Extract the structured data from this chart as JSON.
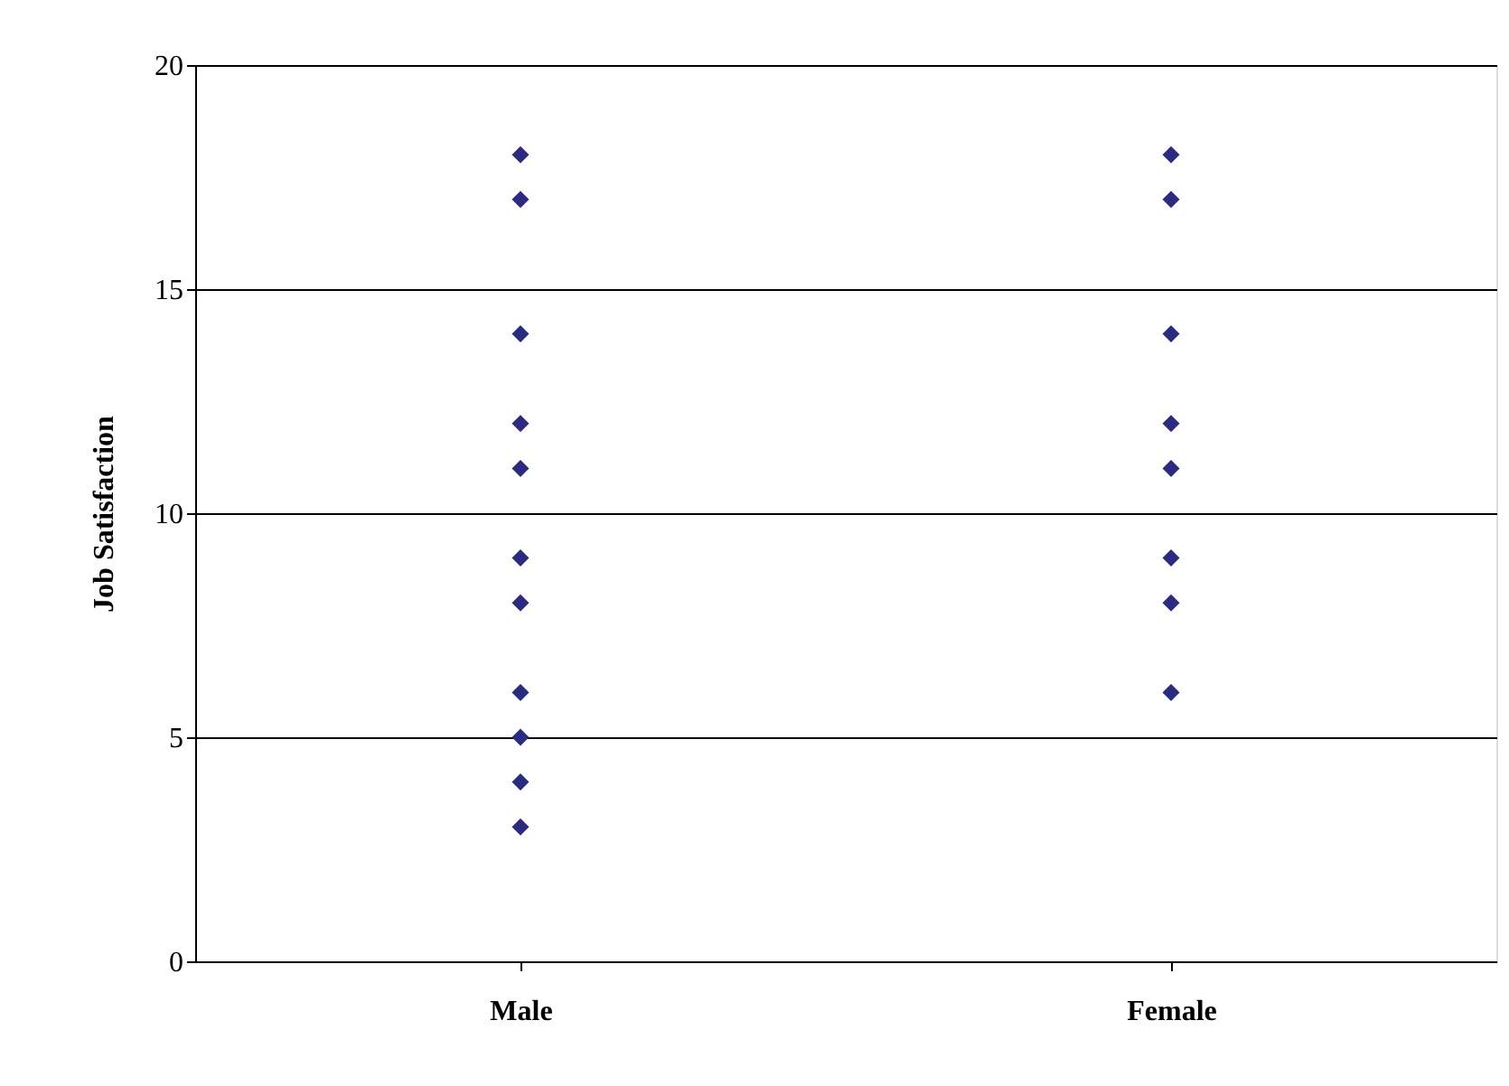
{
  "chart_data": {
    "type": "scatter",
    "ylabel": "Job Satisfaction",
    "categories": [
      "Male",
      "Female"
    ],
    "series": [
      {
        "color": "#2b2b7f",
        "x": [
          "Male",
          "Male",
          "Male",
          "Male",
          "Male",
          "Male",
          "Male",
          "Male",
          "Male",
          "Male",
          "Male",
          "Female",
          "Female",
          "Female",
          "Female",
          "Female",
          "Female",
          "Female",
          "Female"
        ],
        "values": [
          18,
          17,
          14,
          12,
          11,
          9,
          8,
          6,
          5,
          4,
          3,
          18,
          17,
          14,
          12,
          11,
          9,
          8,
          6
        ]
      }
    ],
    "ylim": [
      0,
      20
    ],
    "yticks": [
      0,
      5,
      10,
      15,
      20
    ],
    "grid": "y",
    "marker": "diamond"
  }
}
